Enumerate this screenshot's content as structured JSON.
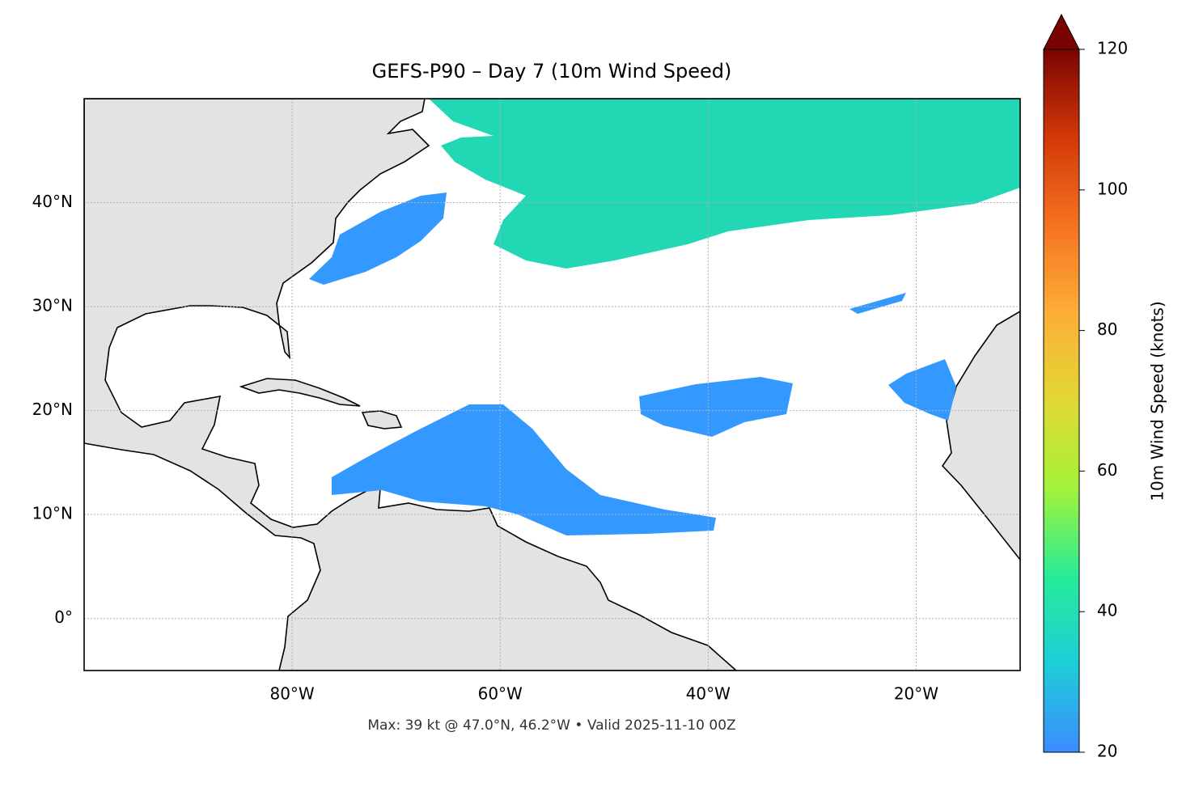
{
  "chart_data": {
    "type": "map",
    "title": "GEFS-P90 – Day 7 (10m Wind Speed)",
    "annotation": "Max: 39 kt @ 47.0°N, 46.2°W • Valid 2025-11-10 00Z",
    "xlim": [
      -100,
      -10
    ],
    "ylim": [
      -5,
      50
    ],
    "xticks": [
      {
        "value": -80,
        "label": "80°W"
      },
      {
        "value": -60,
        "label": "60°W"
      },
      {
        "value": -40,
        "label": "40°W"
      },
      {
        "value": -20,
        "label": "20°W"
      }
    ],
    "yticks": [
      {
        "value": 0,
        "label": "0°"
      },
      {
        "value": 10,
        "label": "10°N"
      },
      {
        "value": 20,
        "label": "20°N"
      },
      {
        "value": 30,
        "label": "30°N"
      },
      {
        "value": 40,
        "label": "40°N"
      }
    ],
    "grid": true,
    "colorbar": {
      "label": "10m Wind Speed (knots)",
      "lim": [
        20,
        120
      ],
      "ticks": [
        20,
        40,
        60,
        80,
        100,
        120
      ],
      "colormap": [
        "#3b8cff",
        "#1ecdd8",
        "#26ec98",
        "#a4f23a",
        "#e2d834",
        "#fcae38",
        "#f57320",
        "#d23808",
        "#7a0403"
      ]
    }
  }
}
